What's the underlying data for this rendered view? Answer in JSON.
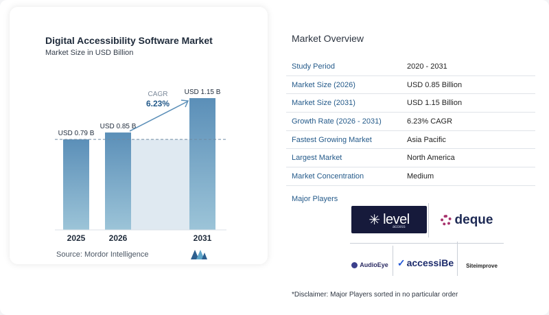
{
  "chart_data": {
    "type": "bar",
    "title": "Digital Accessibility Software Market",
    "subtitle": "Market Size in USD Billion",
    "categories": [
      "2025",
      "2026",
      "2031"
    ],
    "values": [
      0.79,
      0.85,
      1.15
    ],
    "data_labels": [
      "USD 0.79 B",
      "USD 0.85 B",
      "USD 1.15 B"
    ],
    "annotation": {
      "label": "CAGR",
      "value": "6.23%"
    },
    "reference_line_value": 0.79,
    "ylim": [
      0,
      1.15
    ],
    "colors": {
      "bar_top": "#5b8fb8",
      "bar_bottom": "#9cc4d8",
      "shade": "#dfe9f1",
      "arrow": "#5b8fb8",
      "cagr_label": "#7a8899",
      "cagr_value": "#245a8a"
    }
  },
  "source": "Source: Mordor Intelligence",
  "overview": {
    "title": "Market Overview",
    "rows": [
      {
        "label": "Study Period",
        "value": "2020 - 2031"
      },
      {
        "label": "Market Size (2026)",
        "value": "USD 0.85 Billion"
      },
      {
        "label": "Market Size (2031)",
        "value": "USD 1.15 Billion"
      },
      {
        "label": "Growth Rate (2026 - 2031)",
        "value": "6.23% CAGR"
      },
      {
        "label": "Fastest Growing Market",
        "value": "Asia Pacific"
      },
      {
        "label": "Largest Market",
        "value": "North America"
      },
      {
        "label": "Market Concentration",
        "value": "Medium"
      }
    ],
    "players_label": "Major Players",
    "players": {
      "level_access": {
        "word": "level",
        "sub": "access"
      },
      "deque": "deque",
      "audioeye": "AudioEye",
      "accessibe": "accessiBe",
      "siteimprove": "Siteimprove"
    },
    "disclaimer": "*Disclaimer: Major Players sorted in no particular order"
  }
}
